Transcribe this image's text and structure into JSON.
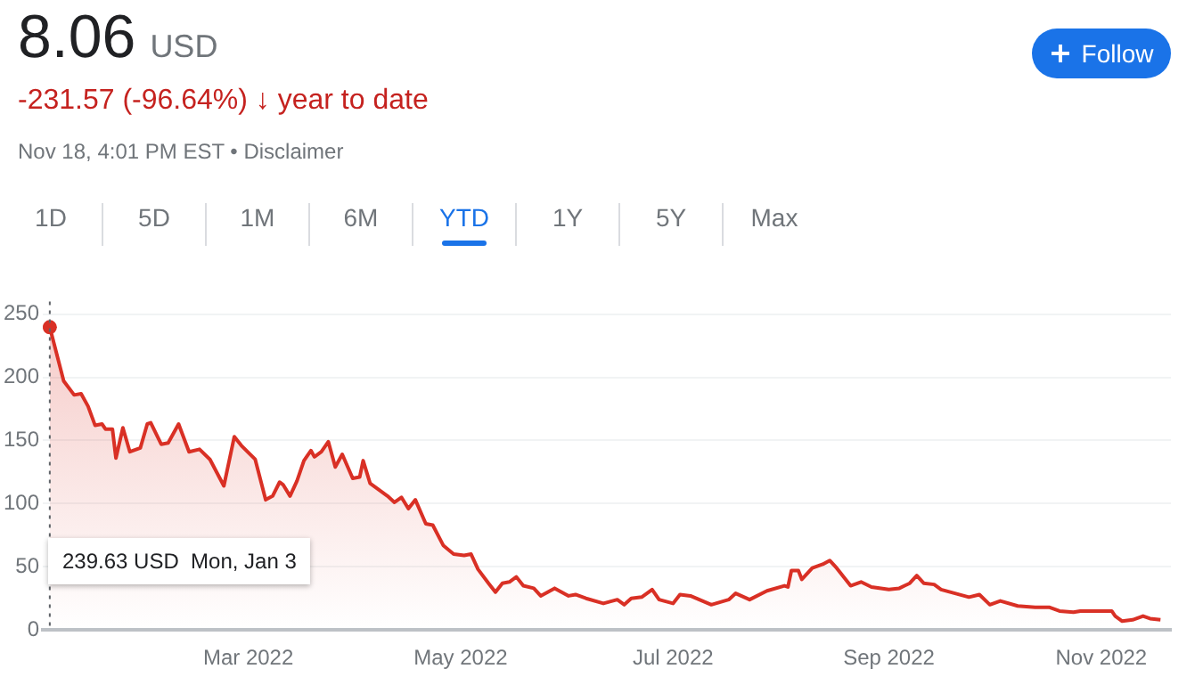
{
  "chart_data": {
    "type": "area",
    "title": "8.06",
    "subtitle": "-231.57 (-96.64%) ↓ year to date",
    "annotations": [
      "USD",
      "Nov 18, 4:01 PM EST • Disclaimer",
      "Follow",
      "1D",
      "5D",
      "1M",
      "6M",
      "YTD",
      "1Y",
      "5Y",
      "Max",
      "239.63 USD  Mon, Jan 3"
    ],
    "x": [
      "2022-01-03",
      "2022-01-07",
      "2022-01-10",
      "2022-01-12",
      "2022-01-14",
      "2022-01-16",
      "2022-01-18",
      "2022-01-19",
      "2022-01-21",
      "2022-01-22",
      "2022-01-24",
      "2022-01-26",
      "2022-01-29",
      "2022-01-31",
      "2022-02-01",
      "2022-02-04",
      "2022-02-06",
      "2022-02-09",
      "2022-02-12",
      "2022-02-15",
      "2022-02-18",
      "2022-02-22",
      "2022-02-25",
      "2022-02-27",
      "2022-03-03",
      "2022-03-06",
      "2022-03-08",
      "2022-03-10",
      "2022-03-11",
      "2022-03-13",
      "2022-03-15",
      "2022-03-17",
      "2022-03-19",
      "2022-03-20",
      "2022-03-22",
      "2022-03-24",
      "2022-03-26",
      "2022-03-28",
      "2022-03-31",
      "2022-04-02",
      "2022-04-03",
      "2022-04-05",
      "2022-04-10",
      "2022-04-12",
      "2022-04-14",
      "2022-04-16",
      "2022-04-18",
      "2022-04-21",
      "2022-04-23",
      "2022-04-26",
      "2022-04-29",
      "2022-05-02",
      "2022-05-04",
      "2022-05-06",
      "2022-05-09",
      "2022-05-11",
      "2022-05-13",
      "2022-05-15",
      "2022-05-17",
      "2022-05-19",
      "2022-05-22",
      "2022-05-24",
      "2022-05-28",
      "2022-06-01",
      "2022-06-03",
      "2022-06-06",
      "2022-06-11",
      "2022-06-15",
      "2022-06-17",
      "2022-06-19",
      "2022-06-22",
      "2022-06-25",
      "2022-06-27",
      "2022-07-01",
      "2022-07-03",
      "2022-07-06",
      "2022-07-12",
      "2022-07-17",
      "2022-07-19",
      "2022-07-23",
      "2022-07-28",
      "2022-08-02",
      "2022-08-03",
      "2022-08-04",
      "2022-08-06",
      "2022-08-07",
      "2022-08-10",
      "2022-08-13",
      "2022-08-15",
      "2022-08-17",
      "2022-08-21",
      "2022-08-24",
      "2022-08-27",
      "2022-09-01",
      "2022-09-04",
      "2022-09-07",
      "2022-09-09",
      "2022-09-11",
      "2022-09-14",
      "2022-09-16",
      "2022-09-20",
      "2022-09-24",
      "2022-09-27",
      "2022-09-30",
      "2022-10-03",
      "2022-10-08",
      "2022-10-13",
      "2022-10-17",
      "2022-10-20",
      "2022-10-24",
      "2022-10-26",
      "2022-11-01",
      "2022-11-04",
      "2022-11-05",
      "2022-11-07",
      "2022-11-10",
      "2022-11-13",
      "2022-11-15",
      "2022-11-18"
    ],
    "series": [
      {
        "color": "#d93025",
        "values": [
          239.63,
          197,
          186,
          187,
          177,
          162,
          163,
          159,
          159,
          136,
          160,
          141,
          144,
          163,
          164,
          147,
          148,
          163,
          141,
          143,
          135,
          114,
          153,
          146,
          135,
          103,
          106,
          117,
          115,
          106,
          118,
          134,
          142,
          137,
          141,
          149,
          129,
          139,
          120,
          121,
          134,
          116,
          106,
          101,
          105,
          96,
          103,
          84,
          83,
          67,
          60,
          59,
          60,
          48,
          37,
          30,
          37,
          38,
          42,
          35,
          33,
          27,
          33,
          27,
          28,
          25,
          21,
          24,
          20,
          25,
          26,
          32,
          24,
          21,
          28,
          27,
          20,
          24,
          29,
          24,
          31,
          35,
          34,
          47,
          47,
          40,
          49,
          52,
          55,
          49,
          35,
          38,
          34,
          32,
          33,
          37,
          43,
          37,
          36,
          32,
          29,
          26,
          28,
          20,
          23,
          19,
          18,
          18,
          15,
          14,
          15,
          15,
          15,
          11,
          7,
          8,
          11,
          9,
          8.06
        ]
      }
    ],
    "xlim": [
      "2022-01-01",
      "2022-11-21"
    ],
    "xticks": [
      {
        "value": "2022-03-01",
        "label": "Mar 2022"
      },
      {
        "value": "2022-05-01",
        "label": "May 2022"
      },
      {
        "value": "2022-07-01",
        "label": "Jul 2022"
      },
      {
        "value": "2022-09-01",
        "label": "Sep 2022"
      },
      {
        "value": "2022-11-01",
        "label": "Nov 2022"
      }
    ],
    "ylim": [
      0,
      260
    ],
    "yticks": [
      0,
      50,
      100,
      150,
      200,
      250
    ],
    "ref_lines": [
      {
        "axis": "x",
        "value": "2022-01-03",
        "color": "#5f6368",
        "line_style": "dotted"
      }
    ],
    "grid": "y"
  }
}
